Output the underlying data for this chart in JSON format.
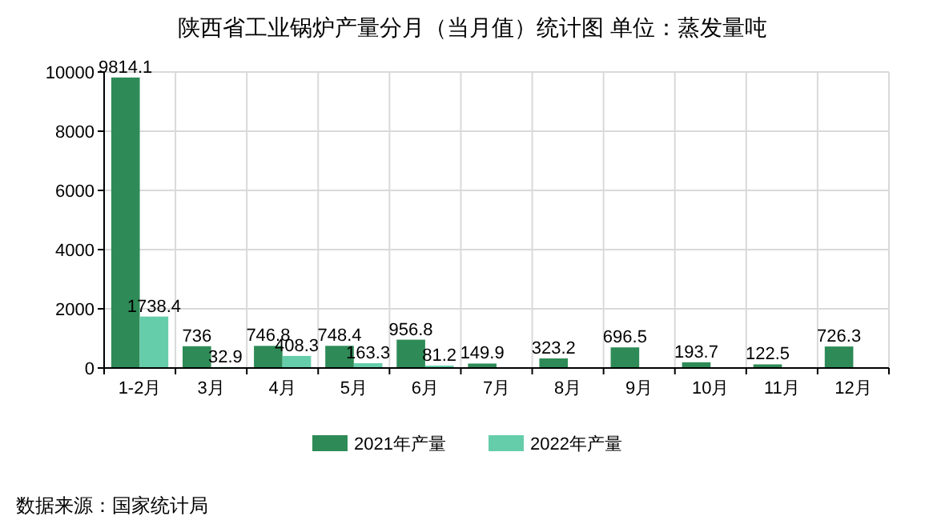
{
  "chart_data": {
    "type": "bar",
    "title": "陕西省工业锅炉产量分月（当月值）统计图 单位：蒸发量吨",
    "categories": [
      "1-2月",
      "3月",
      "4月",
      "5月",
      "6月",
      "7月",
      "8月",
      "9月",
      "10月",
      "11月",
      "12月"
    ],
    "series": [
      {
        "name": "2021年产量",
        "color": "#2e8b57",
        "values": [
          9814.1,
          736,
          746.8,
          748.4,
          956.8,
          149.9,
          323.2,
          696.5,
          193.7,
          122.5,
          726.3
        ]
      },
      {
        "name": "2022年产量",
        "color": "#66cdaa",
        "values": [
          1738.4,
          32.9,
          408.3,
          163.3,
          81.2,
          null,
          null,
          null,
          null,
          null,
          null
        ]
      }
    ],
    "ylim": [
      0,
      10000
    ],
    "yticks": [
      0,
      2000,
      4000,
      6000,
      8000,
      10000
    ],
    "grid": true,
    "legend": "bottom",
    "data_labels": true,
    "annotations": [
      "数据来源：国家统计局"
    ]
  }
}
